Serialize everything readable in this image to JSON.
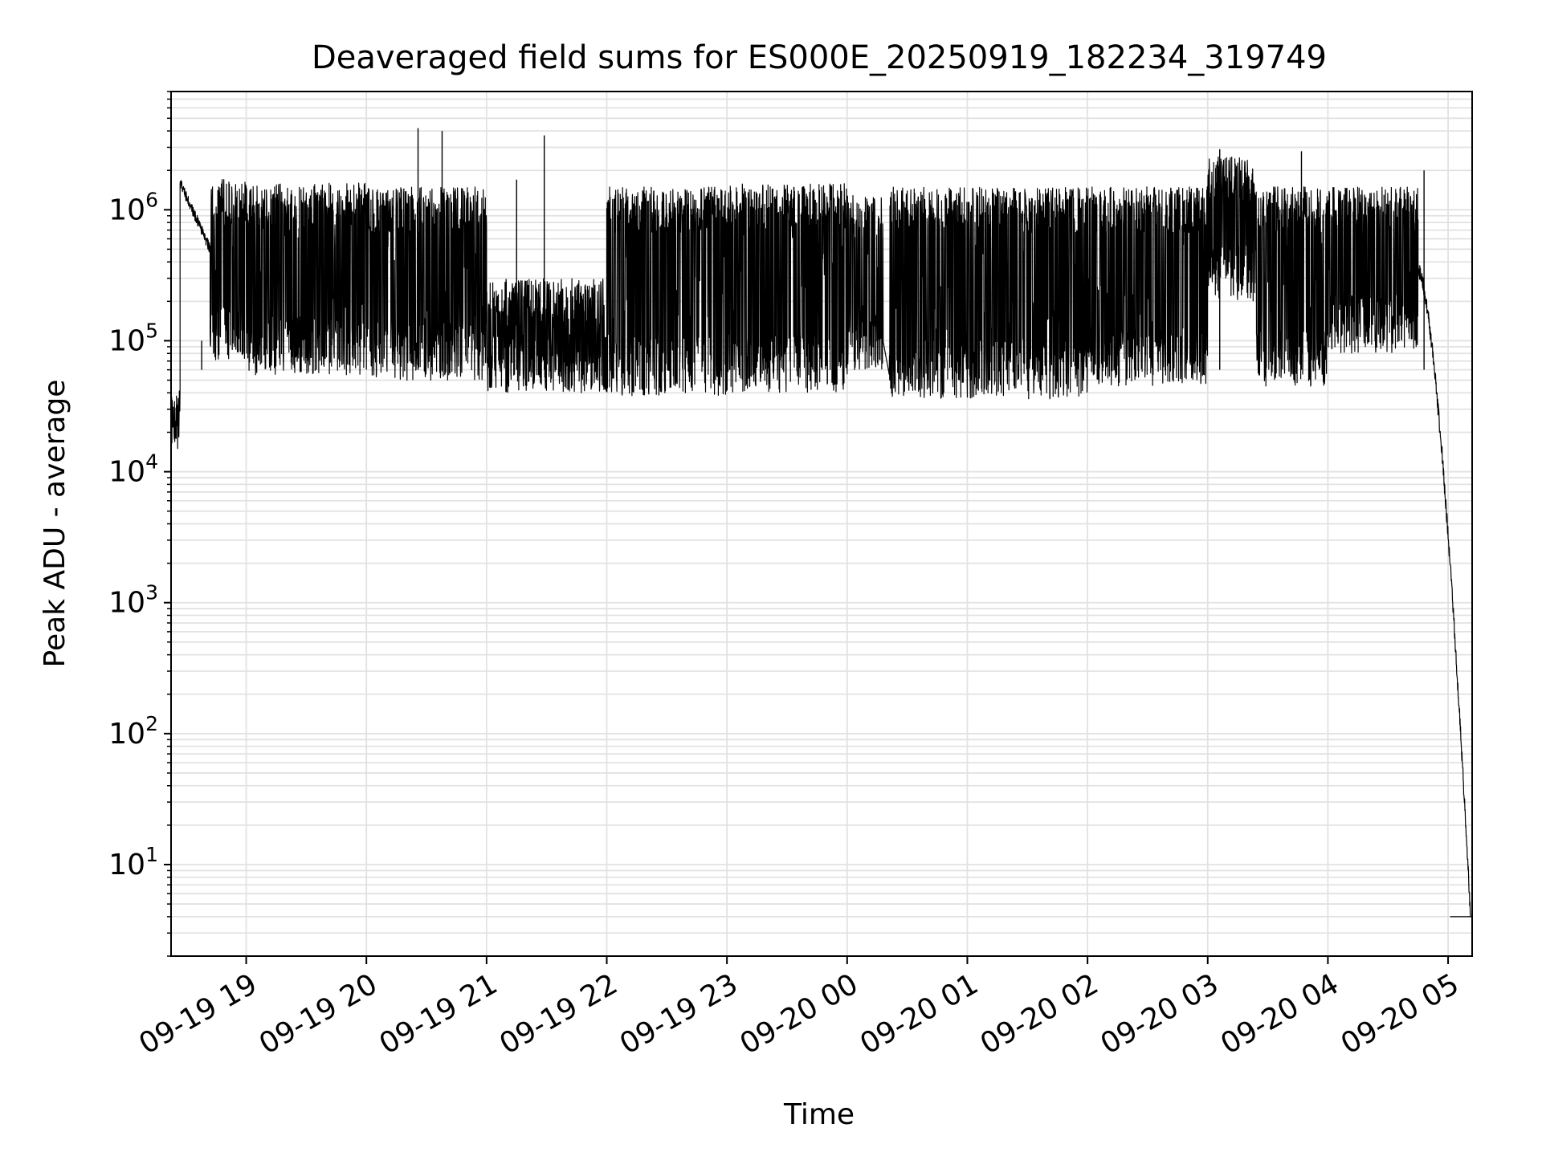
{
  "chart_data": {
    "type": "line",
    "title": "Deaveraged field sums for ES000E_20250919_182234_319749",
    "xlabel": "Time",
    "ylabel": "Peak ADU - average",
    "yscale": "log",
    "grid": true,
    "ylim": [
      2.0,
      8000000
    ],
    "xlim": [
      -0.625,
      10.2
    ],
    "x_unit": "hours after 2025-09-19 19:00",
    "x_ticks": [
      {
        "x": 0,
        "label": "09-19 19"
      },
      {
        "x": 1,
        "label": "09-19 20"
      },
      {
        "x": 2,
        "label": "09-19 21"
      },
      {
        "x": 3,
        "label": "09-19 22"
      },
      {
        "x": 4,
        "label": "09-19 23"
      },
      {
        "x": 5,
        "label": "09-20 00"
      },
      {
        "x": 6,
        "label": "09-20 01"
      },
      {
        "x": 7,
        "label": "09-20 02"
      },
      {
        "x": 8,
        "label": "09-20 03"
      },
      {
        "x": 9,
        "label": "09-20 04"
      },
      {
        "x": 10,
        "label": "09-20 05"
      }
    ],
    "y_ticks": [
      {
        "value": 10,
        "base": "10",
        "exp": "1"
      },
      {
        "value": 100,
        "base": "10",
        "exp": "2"
      },
      {
        "value": 1000,
        "base": "10",
        "exp": "3"
      },
      {
        "value": 10000,
        "base": "10",
        "exp": "4"
      },
      {
        "value": 100000,
        "base": "10",
        "exp": "5"
      },
      {
        "value": 1000000,
        "base": "10",
        "exp": "6"
      }
    ],
    "series": [
      {
        "name": "deaveraged field sum",
        "color": "#000000",
        "envelope_segments": [
          {
            "x0": -0.62,
            "x1": -0.55,
            "lo": 15000,
            "hi": 35000
          },
          {
            "x0": -0.55,
            "x1": -0.3,
            "lo": 700000,
            "hi": 1600000,
            "style": "smooth-decay-start"
          },
          {
            "x0": -0.3,
            "x1": 0.0,
            "lo": 70000,
            "hi": 1700000
          },
          {
            "x0": 0.0,
            "x1": 1.0,
            "lo": 55000,
            "hi": 1600000
          },
          {
            "x0": 1.0,
            "x1": 2.0,
            "lo": 50000,
            "hi": 1500000
          },
          {
            "x0": 2.0,
            "x1": 3.0,
            "lo": 40000,
            "hi": 300000
          },
          {
            "x0": 3.0,
            "x1": 4.0,
            "lo": 38000,
            "hi": 1500000
          },
          {
            "x0": 4.0,
            "x1": 5.0,
            "lo": 40000,
            "hi": 1600000
          },
          {
            "x0": 5.0,
            "x1": 5.3,
            "lo": 60000,
            "hi": 1300000
          },
          {
            "x0": 5.35,
            "x1": 6.0,
            "lo": 36000,
            "hi": 1500000
          },
          {
            "x0": 6.0,
            "x1": 7.0,
            "lo": 36000,
            "hi": 1500000
          },
          {
            "x0": 7.0,
            "x1": 8.0,
            "lo": 45000,
            "hi": 1500000
          },
          {
            "x0": 8.0,
            "x1": 8.4,
            "lo": 200000,
            "hi": 2600000
          },
          {
            "x0": 8.4,
            "x1": 9.0,
            "lo": 45000,
            "hi": 1500000
          },
          {
            "x0": 9.0,
            "x1": 9.75,
            "lo": 80000,
            "hi": 1500000
          },
          {
            "x0": 9.75,
            "x1": 10.2,
            "lo": 4,
            "hi": 350000,
            "style": "falloff"
          }
        ],
        "spikes": [
          {
            "x": 1.43,
            "y": 4200000
          },
          {
            "x": 1.63,
            "y": 4000000
          },
          {
            "x": 2.48,
            "y": 3700000
          },
          {
            "x": 2.25,
            "y": 1700000
          },
          {
            "x": 8.1,
            "y": 2900000
          },
          {
            "x": 8.78,
            "y": 2800000
          },
          {
            "x": 9.8,
            "y": 2000000
          },
          {
            "x": -0.37,
            "y": 100000
          }
        ],
        "end_plateau": {
          "x0": 10.02,
          "x1": 10.2,
          "y": 4
        }
      }
    ]
  }
}
